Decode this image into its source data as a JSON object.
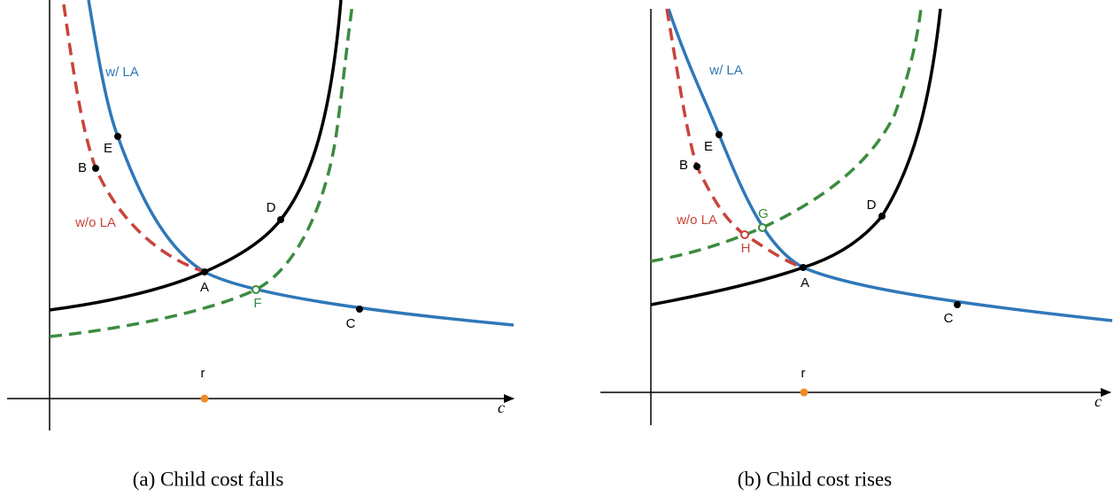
{
  "panels": [
    {
      "caption": "(a) Child cost falls",
      "axis_label": "c",
      "curve_labels": [
        "w/ LA",
        "w/o LA"
      ],
      "points": [
        "A",
        "B",
        "C",
        "D",
        "E",
        "F"
      ],
      "marker": "r"
    },
    {
      "caption": "(b) Child cost rises",
      "axis_label": "c",
      "curve_labels": [
        "w/ LA",
        "w/o LA"
      ],
      "points": [
        "A",
        "B",
        "C",
        "D",
        "E",
        "G",
        "H"
      ],
      "marker": "r"
    }
  ]
}
